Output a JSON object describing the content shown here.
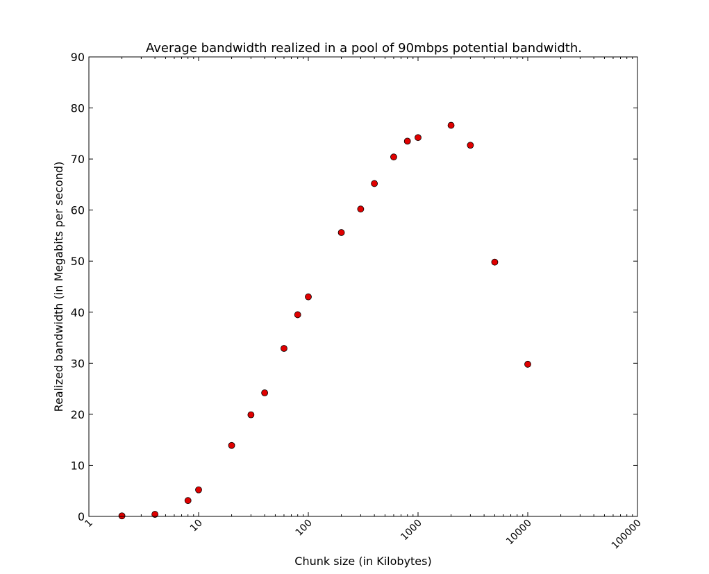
{
  "chart_data": {
    "type": "scatter",
    "title": "Average bandwidth realized in a pool of 90mbps potential bandwidth.",
    "xlabel": "Chunk size (in Kilobytes)",
    "ylabel": "Realized bandwidth (in Megabits per second)",
    "xscale": "log",
    "xlim": [
      1,
      100000
    ],
    "ylim": [
      0,
      90
    ],
    "xticks": [
      "1",
      "10",
      "100",
      "1000",
      "10000",
      "100000"
    ],
    "yticks": [
      "0",
      "10",
      "20",
      "30",
      "40",
      "50",
      "60",
      "70",
      "80",
      "90"
    ],
    "grid": false,
    "marker_color": "#e00000",
    "x": [
      2,
      4,
      8,
      10,
      20,
      30,
      40,
      60,
      80,
      100,
      200,
      300,
      400,
      600,
      800,
      1000,
      2000,
      3000,
      5000,
      10000
    ],
    "y": [
      0.1,
      0.4,
      3.1,
      5.2,
      13.9,
      19.9,
      24.2,
      32.9,
      39.5,
      43.0,
      55.6,
      60.2,
      65.2,
      70.4,
      73.5,
      74.2,
      76.6,
      72.7,
      49.8,
      29.8
    ]
  }
}
